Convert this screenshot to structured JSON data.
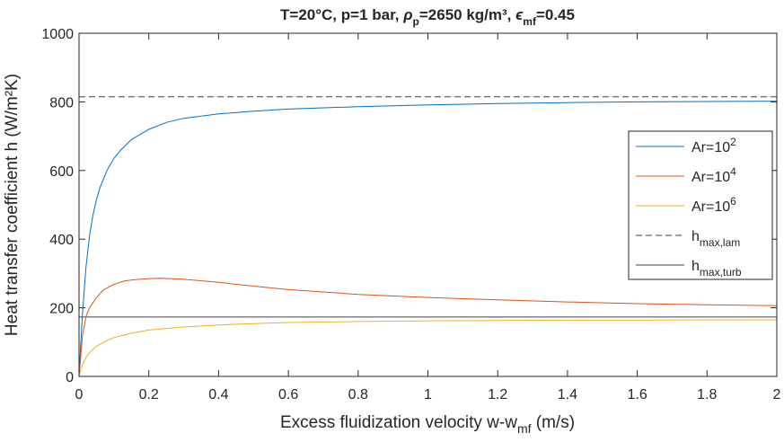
{
  "chart_data": {
    "type": "line",
    "title": {
      "prefix": "T=20°C, p=1 bar, ",
      "rho": "ρ",
      "rho_sub": "p",
      "rho_val": "=2650 kg/m³, ",
      "eps": "ϵ",
      "eps_sub": "mf",
      "eps_val": "=0.45"
    },
    "xlabel": {
      "main": "Excess fluidization velocity w-w",
      "sub": "mf",
      "tail": " (m/s)"
    },
    "ylabel": "Heat transfer coefficient h (W/m²K)",
    "xlim": [
      0,
      2
    ],
    "ylim": [
      0,
      1000
    ],
    "xticks": [
      "0",
      "0.2",
      "0.4",
      "0.6",
      "0.8",
      "1",
      "1.2",
      "1.4",
      "1.6",
      "1.8",
      "2"
    ],
    "yticks": [
      "0",
      "200",
      "400",
      "600",
      "800",
      "1000"
    ],
    "grid": false,
    "legend_position": "right",
    "series": [
      {
        "name": "Ar=10",
        "sup": "2",
        "color": "#0072BD",
        "style": "solid",
        "x": [
          0,
          0.005,
          0.01,
          0.02,
          0.03,
          0.04,
          0.05,
          0.06,
          0.08,
          0.1,
          0.12,
          0.15,
          0.2,
          0.25,
          0.3,
          0.4,
          0.5,
          0.6,
          0.8,
          1.0,
          1.2,
          1.4,
          1.6,
          1.8,
          2.0
        ],
        "y": [
          0,
          95,
          185,
          320,
          410,
          470,
          515,
          550,
          600,
          635,
          660,
          690,
          720,
          740,
          752,
          765,
          773,
          779,
          786,
          791,
          795,
          798,
          800,
          801,
          802
        ]
      },
      {
        "name": "Ar=10",
        "sup": "4",
        "color": "#D95319",
        "style": "solid",
        "x": [
          0,
          0.01,
          0.02,
          0.03,
          0.05,
          0.07,
          0.1,
          0.13,
          0.16,
          0.2,
          0.23,
          0.26,
          0.3,
          0.4,
          0.5,
          0.6,
          0.8,
          1.0,
          1.2,
          1.4,
          1.6,
          1.8,
          2.0
        ],
        "y": [
          0,
          120,
          175,
          200,
          230,
          252,
          268,
          278,
          282,
          285,
          286,
          285,
          283,
          274,
          263,
          253,
          239,
          230,
          223,
          217,
          212,
          209,
          206
        ]
      },
      {
        "name": "Ar=10",
        "sup": "6",
        "color": "#EDB120",
        "style": "solid",
        "x": [
          0,
          0.01,
          0.02,
          0.03,
          0.05,
          0.08,
          0.1,
          0.15,
          0.2,
          0.3,
          0.4,
          0.5,
          0.6,
          0.8,
          1.0,
          1.2,
          1.4,
          1.6,
          1.8,
          2.0
        ],
        "y": [
          0,
          35,
          55,
          70,
          88,
          105,
          113,
          126,
          135,
          144,
          150,
          154,
          157,
          160,
          162,
          163,
          164,
          164,
          165,
          165
        ]
      },
      {
        "name": "h",
        "sub": "max,lam",
        "color": "#404040",
        "style": "dashed",
        "x": [
          0,
          2
        ],
        "y": [
          815,
          815
        ]
      },
      {
        "name": "h",
        "sub": "max,turb",
        "color": "#404040",
        "style": "solid",
        "x": [
          0,
          2
        ],
        "y": [
          173,
          173
        ]
      }
    ]
  }
}
